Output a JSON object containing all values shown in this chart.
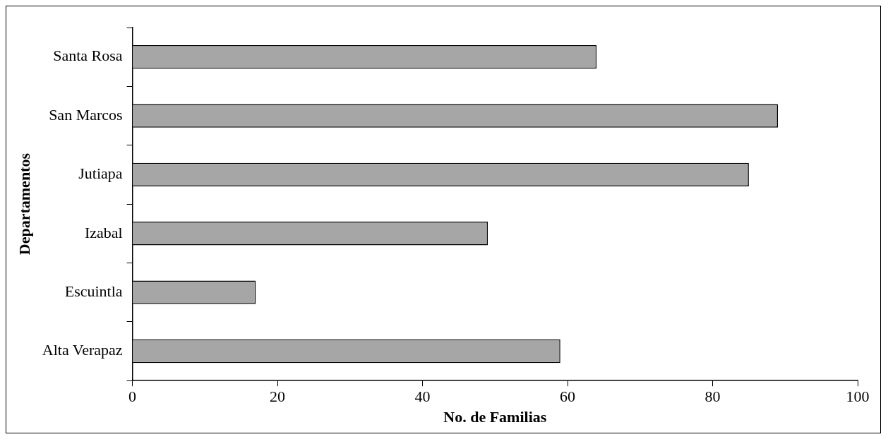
{
  "chart_data": {
    "type": "bar",
    "orientation": "horizontal",
    "xlabel": "No. de Familias",
    "ylabel": "Departamentos",
    "categories": [
      "Santa Rosa",
      "San Marcos",
      "Jutiapa",
      "Izabal",
      "Escuintla",
      "Alta Verapaz"
    ],
    "values": [
      64,
      89,
      85,
      49,
      17,
      59
    ],
    "color": "#a6a6a6",
    "xlim": [
      0,
      100
    ],
    "xticks": [
      0,
      20,
      40,
      60,
      80,
      100
    ],
    "grid": false,
    "legend": false
  }
}
